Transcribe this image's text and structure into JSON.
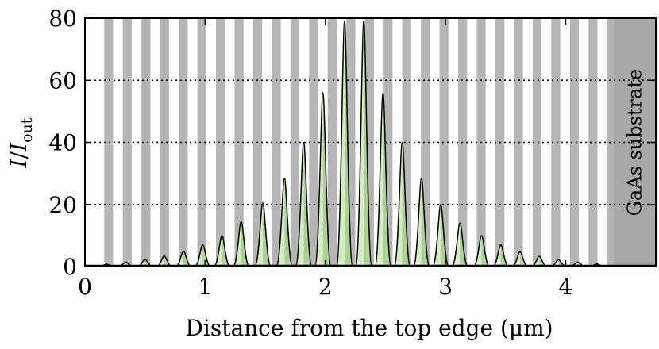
{
  "chart_data": {
    "type": "area",
    "title": "",
    "xlabel": "Distance from the top edge (μm)",
    "ylabel": "I/I_out",
    "xlim": [
      0,
      4.75
    ],
    "ylim": [
      0,
      80
    ],
    "xticks": [
      "0",
      "1",
      "2",
      "3",
      "4"
    ],
    "yticks": [
      "0",
      "20",
      "40",
      "60",
      "80"
    ],
    "grid": "horizontal dotted",
    "substrate_label": "GaAs substrate",
    "substrate_start": 4.4,
    "layer_period": 0.155,
    "peaks": [
      {
        "x": 0.18,
        "y": 0.8
      },
      {
        "x": 0.34,
        "y": 1.4
      },
      {
        "x": 0.5,
        "y": 2.3
      },
      {
        "x": 0.66,
        "y": 3.4
      },
      {
        "x": 0.82,
        "y": 5.0
      },
      {
        "x": 0.98,
        "y": 7.0
      },
      {
        "x": 1.14,
        "y": 10.0
      },
      {
        "x": 1.3,
        "y": 14.5
      },
      {
        "x": 1.48,
        "y": 20.5
      },
      {
        "x": 1.66,
        "y": 28.5
      },
      {
        "x": 1.82,
        "y": 40.0
      },
      {
        "x": 1.98,
        "y": 56.0
      },
      {
        "x": 2.16,
        "y": 79.0
      },
      {
        "x": 2.32,
        "y": 79.0
      },
      {
        "x": 2.48,
        "y": 56.0
      },
      {
        "x": 2.64,
        "y": 40.0
      },
      {
        "x": 2.8,
        "y": 28.5
      },
      {
        "x": 2.96,
        "y": 20.0
      },
      {
        "x": 3.12,
        "y": 14.0
      },
      {
        "x": 3.3,
        "y": 10.0
      },
      {
        "x": 3.46,
        "y": 7.0
      },
      {
        "x": 3.62,
        "y": 4.8
      },
      {
        "x": 3.78,
        "y": 3.3
      },
      {
        "x": 3.94,
        "y": 2.2
      },
      {
        "x": 4.1,
        "y": 1.4
      },
      {
        "x": 4.26,
        "y": 0.8
      }
    ],
    "colors": {
      "layer": "#b5b5b5",
      "substrate": "#a8a8a8",
      "fill_light": "#d6ebc7",
      "fill_dark": "#a9d38f",
      "line": "#000000"
    }
  }
}
